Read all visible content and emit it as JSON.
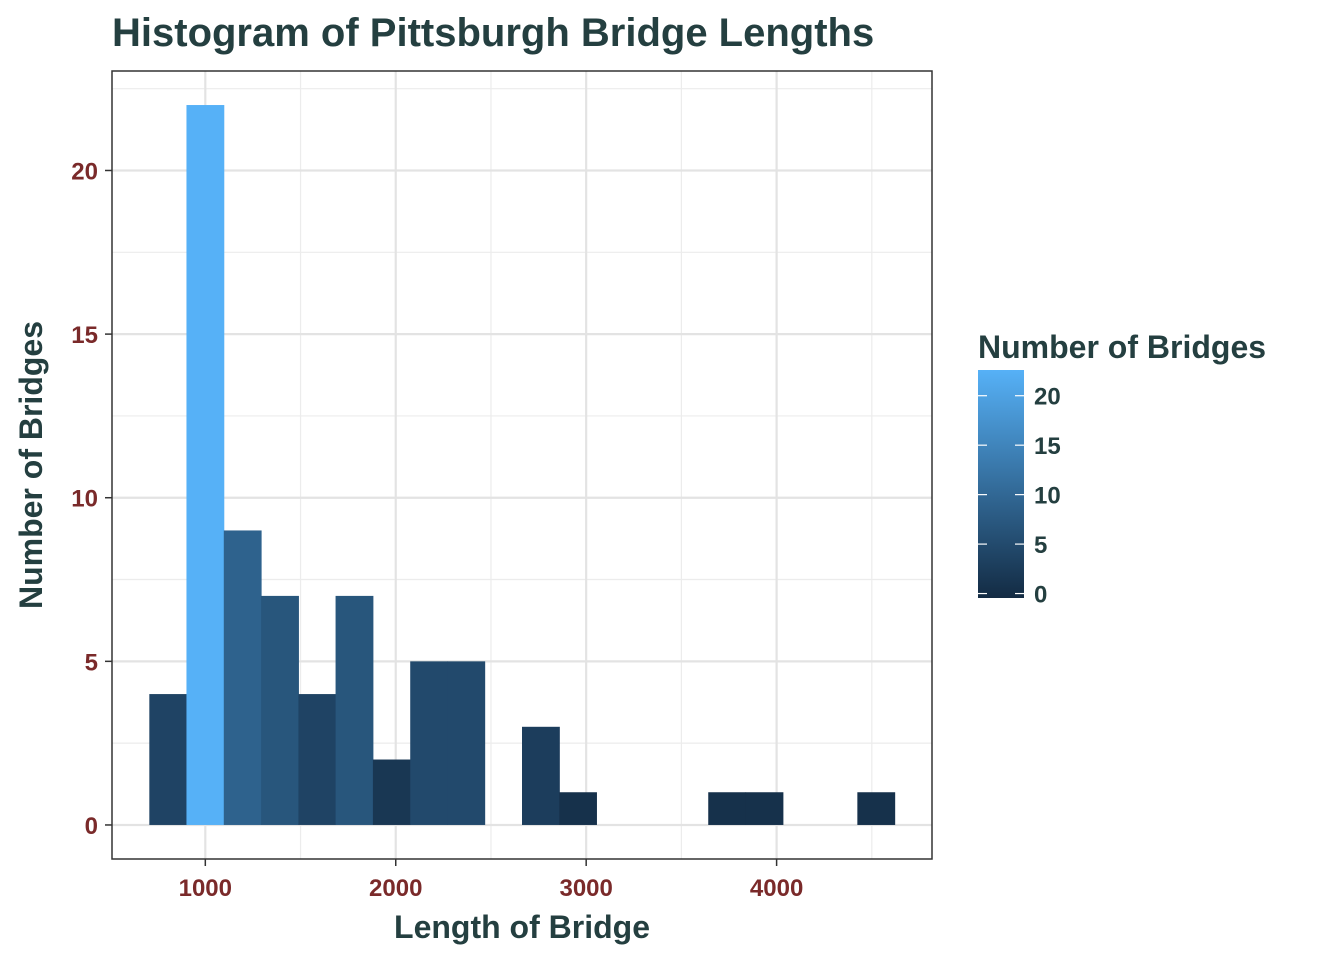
{
  "chart_data": {
    "type": "bar",
    "title": "Histogram of Pittsburgh Bridge Lengths",
    "xlabel": "Length of Bridge",
    "ylabel": "Number of Bridges",
    "bins": [
      {
        "x0": 706,
        "x1": 901,
        "count": 4
      },
      {
        "x0": 901,
        "x1": 1097,
        "count": 22
      },
      {
        "x0": 1097,
        "x1": 1293,
        "count": 9
      },
      {
        "x0": 1293,
        "x1": 1489,
        "count": 7
      },
      {
        "x0": 1489,
        "x1": 1684,
        "count": 4
      },
      {
        "x0": 1684,
        "x1": 1880,
        "count": 7
      },
      {
        "x0": 1880,
        "x1": 2076,
        "count": 2
      },
      {
        "x0": 2076,
        "x1": 2271,
        "count": 5
      },
      {
        "x0": 2271,
        "x1": 2467,
        "count": 5
      },
      {
        "x0": 2467,
        "x1": 2663,
        "count": 0
      },
      {
        "x0": 2663,
        "x1": 2859,
        "count": 3
      },
      {
        "x0": 2859,
        "x1": 3054,
        "count": 1
      },
      {
        "x0": 3054,
        "x1": 3250,
        "count": 0
      },
      {
        "x0": 3250,
        "x1": 3446,
        "count": 0
      },
      {
        "x0": 3446,
        "x1": 3641,
        "count": 0
      },
      {
        "x0": 3641,
        "x1": 3837,
        "count": 1
      },
      {
        "x0": 3837,
        "x1": 4033,
        "count": 1
      },
      {
        "x0": 4033,
        "x1": 4229,
        "count": 0
      },
      {
        "x0": 4229,
        "x1": 4424,
        "count": 0
      },
      {
        "x0": 4424,
        "x1": 4620,
        "count": 1
      }
    ],
    "xlim": [
      510,
      4816
    ],
    "ylim": [
      -1.04,
      23.04
    ],
    "x_ticks": [
      1000,
      2000,
      3000,
      4000
    ],
    "y_ticks": [
      0,
      5,
      10,
      15,
      20
    ],
    "x_tick_labels": [
      "1000",
      "2000",
      "3000",
      "4000"
    ],
    "y_tick_labels": [
      "0",
      "5",
      "10",
      "15",
      "20"
    ],
    "grid": true,
    "legend": {
      "title": "Number of Bridges",
      "placement": "right",
      "type": "colorbar",
      "range": [
        0,
        22
      ],
      "ticks": [
        0,
        5,
        10,
        15,
        20
      ],
      "tick_labels": [
        "0",
        "5",
        "10",
        "15",
        "20"
      ],
      "low_color": "#132b43",
      "high_color": "#56b1f7"
    }
  }
}
